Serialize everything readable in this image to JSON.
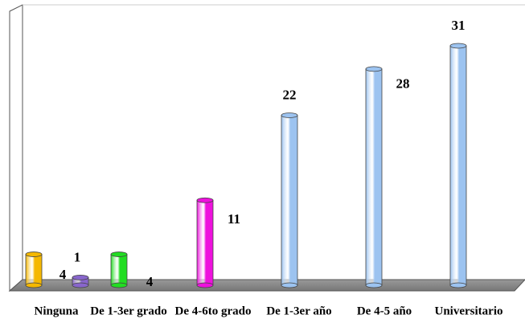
{
  "chart_data": {
    "type": "bar",
    "categories": [
      "Ninguna",
      null,
      "De 1-3er grado",
      "De 4-6to grado",
      "De 1-3er año",
      "De 4-5 año",
      "Universitario"
    ],
    "values": [
      4,
      1,
      4,
      11,
      22,
      28,
      31
    ],
    "colors": [
      "#f5b800",
      "#8866cc",
      "#22dd22",
      "#ee11dd",
      "#9cc3f0",
      "#9cc3f0",
      "#9cc3f0"
    ]
  }
}
